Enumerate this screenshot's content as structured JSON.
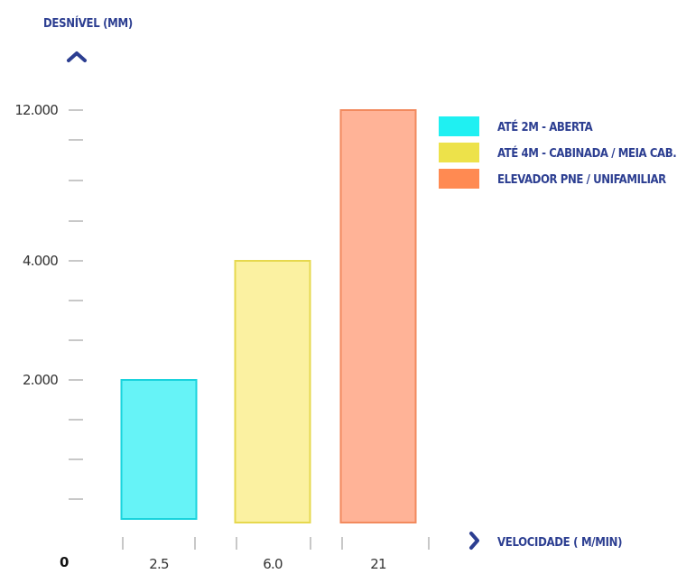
{
  "colors": {
    "accent": "#2c3e91",
    "tick": "#c8c8c8",
    "label": "#333333"
  },
  "chart_data": {
    "type": "bar",
    "ylabel": "DESNÍVEL (MM)",
    "xlabel": "VELOCIDADE ( M/MIN)",
    "zero_label": "0",
    "ylim": [
      0,
      12000
    ],
    "y_tick_labels": [
      "12.000",
      "4.000",
      "2.000"
    ],
    "categories": [
      "2.5",
      "6.0",
      "21"
    ],
    "series": [
      {
        "name": "ATÉ 2M - ABERTA",
        "values": [
          2000,
          null,
          null
        ],
        "fill": "#66f3f7",
        "stroke": "#19d3dd"
      },
      {
        "name": "ATÉ 4M - CABINADA / MEIA CAB.",
        "values": [
          null,
          4000,
          null
        ],
        "fill": "#fbf1a1",
        "stroke": "#e6d84e"
      },
      {
        "name": "ELEVADOR PNE / UNIFAMILIAR",
        "values": [
          null,
          null,
          12000
        ],
        "fill": "#ffb397",
        "stroke": "#f28a5e"
      }
    ],
    "legend": {
      "position": "top-right",
      "items": [
        {
          "label": "ATÉ 2M - ABERTA",
          "color": "#1ff0f2"
        },
        {
          "label": "ATÉ 4M - CABINADA / MEIA CAB.",
          "color": "#ede24a"
        },
        {
          "label": "ELEVADOR PNE / UNIFAMILIAR",
          "color": "#ff8a52"
        }
      ]
    },
    "grid": false
  }
}
